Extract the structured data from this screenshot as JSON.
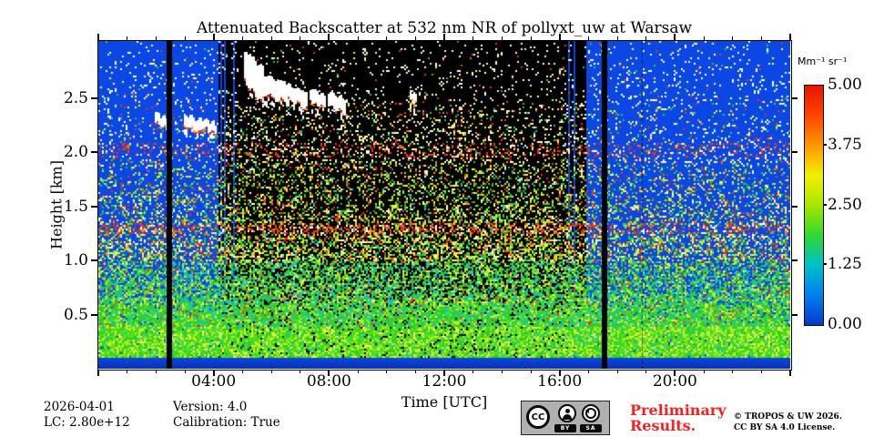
{
  "title": "Attenuated Backscatter at 532 nm NR of pollyxt_uw at Warsaw",
  "axes": {
    "xlabel": "Time [UTC]",
    "ylabel": "Height [km]",
    "x_ticks": [
      {
        "hour": 4,
        "label": "04:00"
      },
      {
        "hour": 8,
        "label": "08:00"
      },
      {
        "hour": 12,
        "label": "12:00"
      },
      {
        "hour": 16,
        "label": "16:00"
      },
      {
        "hour": 20,
        "label": "20:00"
      }
    ],
    "y_ticks": [
      {
        "km": 0.5,
        "label": "0.5"
      },
      {
        "km": 1.0,
        "label": "1.0"
      },
      {
        "km": 1.5,
        "label": "1.5"
      },
      {
        "km": 2.0,
        "label": "2.0"
      },
      {
        "km": 2.5,
        "label": "2.5"
      }
    ]
  },
  "colorbar": {
    "unit_label": "Mm⁻¹ sr⁻¹",
    "range": [
      0,
      5
    ],
    "ticks": [
      {
        "value": 0.0,
        "label": "0.00"
      },
      {
        "value": 1.25,
        "label": "1.25"
      },
      {
        "value": 2.5,
        "label": "2.50"
      },
      {
        "value": 3.75,
        "label": "3.75"
      },
      {
        "value": 5.0,
        "label": "5.00"
      }
    ]
  },
  "footer": {
    "date": "2026-04-01",
    "lc": "LC: 2.80e+12",
    "version": "Version: 4.0",
    "calibration": "Calibration: True",
    "preliminary_line1": "Preliminary",
    "preliminary_line2": "Results.",
    "preliminary_color": "#f52020",
    "copyright_line1": "© TROPOS & UW 2026.",
    "copyright_line2": "CC BY SA 4.0 License."
  },
  "license_badge": {
    "cc_text": "CC",
    "by_text": "BY",
    "sa_text": "SA"
  },
  "chart_data": {
    "type": "heatmap",
    "title": "Attenuated Backscatter at 532 nm NR of pollyxt_uw at Warsaw",
    "xlabel": "Time [UTC]",
    "ylabel": "Height [km]",
    "x_range_hours": [
      0,
      24
    ],
    "y_range_km": [
      0,
      3.03
    ],
    "colorbar_label": "Mm⁻¹ sr⁻¹",
    "colorbar_range": [
      0,
      5
    ],
    "x_tick_hours": [
      4,
      8,
      12,
      16,
      20
    ],
    "y_ticks_km": [
      0.5,
      1.0,
      1.5,
      2.0,
      2.5
    ],
    "legend_position": "right",
    "grid": false,
    "features": {
      "near_ground_strong_layer_km": [
        0.1,
        0.4
      ],
      "boundary_layer_mottle_top_km": 1.0,
      "calibration_gap_hours": [
        2.47,
        17.55
      ],
      "masked_low_signal_hours": [
        4.17,
        16.95
      ],
      "cloud_layers": [
        {
          "t0": 1.95,
          "h0": 2.32,
          "t1": 2.42,
          "h1": 2.26,
          "thick": 0.07
        },
        {
          "t0": 2.95,
          "h0": 2.3,
          "t1": 3.55,
          "h1": 2.24,
          "thick": 0.09
        },
        {
          "t0": 3.6,
          "h0": 2.27,
          "t1": 4.05,
          "h1": 2.22,
          "thick": 0.07
        },
        {
          "t0": 5.05,
          "h0": 2.8,
          "t1": 5.7,
          "h1": 2.62,
          "thick": 0.26
        },
        {
          "t0": 5.7,
          "h0": 2.63,
          "t1": 6.55,
          "h1": 2.54,
          "thick": 0.15
        },
        {
          "t0": 6.55,
          "h0": 2.56,
          "t1": 7.2,
          "h1": 2.48,
          "thick": 0.12
        },
        {
          "t0": 7.35,
          "h0": 2.53,
          "t1": 7.8,
          "h1": 2.47,
          "thick": 0.1
        },
        {
          "t0": 7.95,
          "h0": 2.5,
          "t1": 8.55,
          "h1": 2.43,
          "thick": 0.11
        },
        {
          "t0": 10.8,
          "h0": 2.52,
          "t1": 10.98,
          "h1": 2.5,
          "thick": 0.06
        }
      ]
    },
    "render": {
      "colorbar_stops": [
        "#0538cc",
        "#0080f0",
        "#00c0c8",
        "#30d830",
        "#a8e600",
        "#f0f000",
        "#ff9800",
        "#ff4400",
        "#e81400"
      ],
      "palette": {
        "blue_bg": "#0a47e4",
        "deep_blue": "#0732b4",
        "black_bg": "#000000",
        "cloud_white": "#ffffff",
        "white": "#ffffff",
        "pale_yellow": "#ffffa8",
        "yellow": "#f8f444",
        "yellow_green": "#b4ec1c",
        "bright_green": "#52e41a",
        "green": "#2ecc24",
        "cyan": "#1ec8b4",
        "teal": "#16b4d0",
        "red": "#f53214",
        "orange": "#ff9414"
      },
      "density_profile": [
        [
          0.0,
          0.0
        ],
        [
          0.095,
          0.0
        ],
        [
          0.11,
          0.99
        ],
        [
          0.38,
          0.99
        ],
        [
          0.5,
          0.92
        ],
        [
          0.65,
          0.8
        ],
        [
          0.8,
          0.68
        ],
        [
          1.0,
          0.52
        ],
        [
          1.2,
          0.42
        ],
        [
          1.45,
          0.3
        ],
        [
          1.7,
          0.22
        ],
        [
          2.0,
          0.17
        ],
        [
          2.2,
          0.12
        ],
        [
          2.5,
          0.09
        ],
        [
          2.8,
          0.07
        ],
        [
          3.03,
          0.06
        ]
      ],
      "noise_bands_km": [
        [
          2.02,
          0.07
        ],
        [
          1.3,
          0.05
        ]
      ],
      "mask_holes_hours": [
        [
          4.25,
          0.05
        ],
        [
          4.4,
          0.04
        ],
        [
          4.55,
          0.04
        ],
        [
          4.72,
          0.04
        ],
        [
          16.35,
          0.05
        ],
        [
          16.52,
          0.04
        ],
        [
          16.68,
          0.04
        ]
      ],
      "bar_width_hours": 0.18,
      "dashed_line_hour": 18.85
    }
  }
}
